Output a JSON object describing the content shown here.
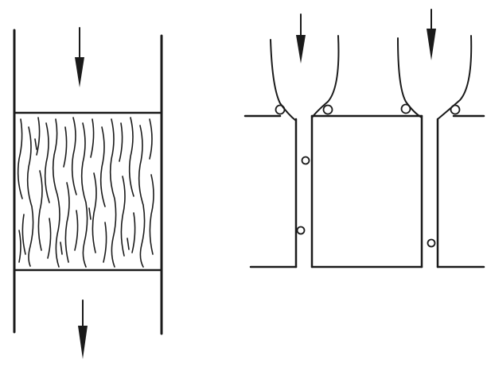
{
  "figure": {
    "left_panel": {
      "subject": "wood-fiber-filter-bed",
      "flow_in": "arrow-down",
      "flow_out": "arrow-down"
    },
    "right_panel": {
      "subject": "channel-flow-with-bubbles",
      "flow_arrows": [
        "arrow-down",
        "arrow-down"
      ]
    }
  },
  "colors": {
    "ink": "#1a1a1a",
    "paper": "#ffffff"
  }
}
